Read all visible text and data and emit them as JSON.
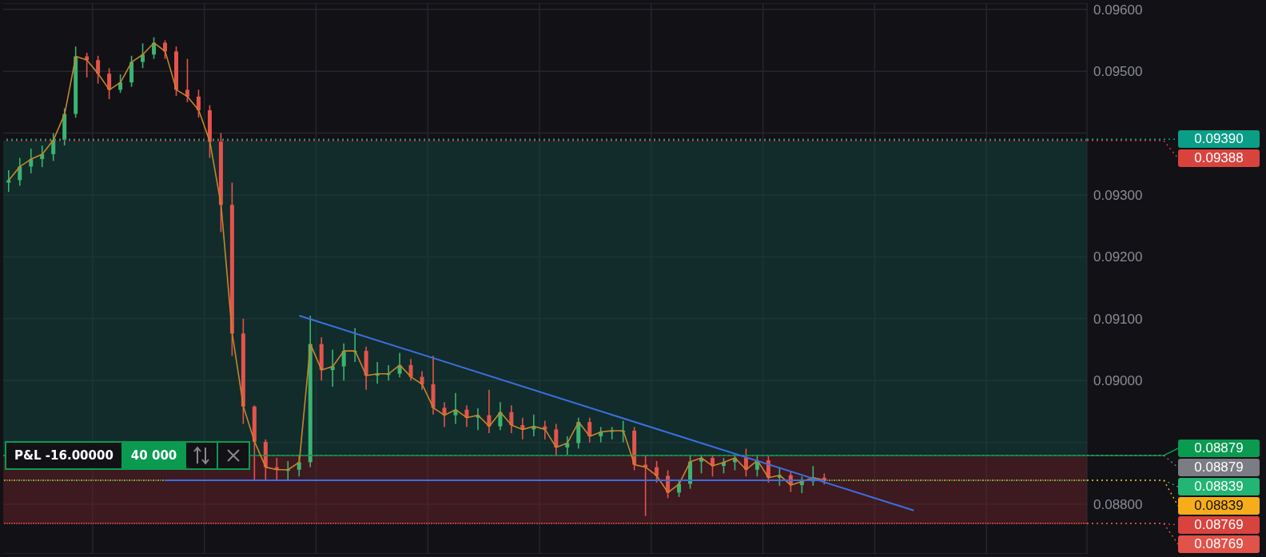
{
  "chart_data": {
    "type": "candlestick",
    "categories": [
      null,
      null,
      null,
      null,
      null,
      null,
      null,
      null,
      null,
      null,
      null,
      null,
      null,
      null,
      null,
      null,
      null,
      null,
      null,
      null,
      null,
      null,
      null,
      null,
      null,
      null,
      null,
      null,
      null,
      null,
      null,
      null,
      null,
      null,
      null,
      null,
      null,
      null,
      null,
      null,
      null,
      null,
      null,
      null,
      null,
      null,
      null,
      null,
      null,
      null,
      null,
      null,
      null,
      null,
      null,
      null,
      null,
      null,
      null,
      null,
      null,
      null,
      null,
      null,
      null,
      null,
      null,
      null,
      null,
      null,
      null,
      null,
      null,
      null,
      null,
      null,
      null,
      null,
      null,
      null,
      null,
      null,
      null,
      null,
      null,
      null,
      null,
      null,
      null,
      null,
      null,
      null,
      null,
      null,
      null,
      null,
      null
    ],
    "ohlc": [
      [
        0.0932,
        0.0934,
        0.09305,
        0.09324
      ],
      [
        0.09324,
        0.0936,
        0.09315,
        0.09346
      ],
      [
        0.09346,
        0.09375,
        0.09335,
        0.09358
      ],
      [
        0.09358,
        0.0938,
        0.09345,
        0.09366
      ],
      [
        0.09366,
        0.094,
        0.09355,
        0.09389
      ],
      [
        0.09389,
        0.0944,
        0.0938,
        0.09431
      ],
      [
        0.09431,
        0.0954,
        0.09425,
        0.09524
      ],
      [
        0.09524,
        0.0953,
        0.0949,
        0.09518
      ],
      [
        0.09518,
        0.09525,
        0.0948,
        0.09496
      ],
      [
        0.09496,
        0.09505,
        0.09455,
        0.0947
      ],
      [
        0.0947,
        0.09495,
        0.09465,
        0.09482
      ],
      [
        0.09482,
        0.09525,
        0.09475,
        0.09515
      ],
      [
        0.09515,
        0.09545,
        0.09505,
        0.09527
      ],
      [
        0.09527,
        0.09555,
        0.0952,
        0.09546
      ],
      [
        0.09546,
        0.0955,
        0.0952,
        0.09532
      ],
      [
        0.09532,
        0.0954,
        0.0946,
        0.0947
      ],
      [
        0.0947,
        0.0952,
        0.0945,
        0.09459
      ],
      [
        0.09459,
        0.0947,
        0.09425,
        0.09437
      ],
      [
        0.09437,
        0.09445,
        0.0936,
        0.09386
      ],
      [
        0.09386,
        0.094,
        0.0924,
        0.09284
      ],
      [
        0.09284,
        0.0932,
        0.0904,
        0.09076
      ],
      [
        0.09076,
        0.091,
        0.0893,
        0.08958
      ],
      [
        0.08958,
        0.0896,
        0.08839,
        0.08901
      ],
      [
        0.08901,
        0.08905,
        0.08839,
        0.0886
      ],
      [
        0.0886,
        0.08875,
        0.08839,
        0.08856
      ],
      [
        0.08856,
        0.0887,
        0.08839,
        0.08856
      ],
      [
        0.08856,
        0.0888,
        0.08845,
        0.08868
      ],
      [
        0.08868,
        0.09105,
        0.0886,
        0.09059
      ],
      [
        0.09059,
        0.0907,
        0.09,
        0.09017
      ],
      [
        0.09017,
        0.0905,
        0.0899,
        0.09023
      ],
      [
        0.09023,
        0.0906,
        0.09,
        0.09048
      ],
      [
        0.09048,
        0.09085,
        0.0903,
        0.09048
      ],
      [
        0.09048,
        0.09055,
        0.08985,
        0.09008
      ],
      [
        0.09008,
        0.0903,
        0.08995,
        0.09011
      ],
      [
        0.09011,
        0.09025,
        0.09,
        0.09011
      ],
      [
        0.09011,
        0.09045,
        0.09005,
        0.09025
      ],
      [
        0.09025,
        0.09035,
        0.09,
        0.09006
      ],
      [
        0.09006,
        0.09015,
        0.08985,
        0.08994
      ],
      [
        0.08994,
        0.0904,
        0.08945,
        0.08956
      ],
      [
        0.08956,
        0.08965,
        0.08925,
        0.08944
      ],
      [
        0.08944,
        0.0898,
        0.0893,
        0.08953
      ],
      [
        0.08953,
        0.0896,
        0.08925,
        0.0894
      ],
      [
        0.0894,
        0.08955,
        0.0892,
        0.08944
      ],
      [
        0.08944,
        0.08985,
        0.08915,
        0.08926
      ],
      [
        0.08926,
        0.08965,
        0.0892,
        0.08949
      ],
      [
        0.08949,
        0.0896,
        0.08915,
        0.08928
      ],
      [
        0.08928,
        0.0894,
        0.08905,
        0.08921
      ],
      [
        0.08921,
        0.08945,
        0.0891,
        0.08926
      ],
      [
        0.08926,
        0.08935,
        0.08905,
        0.08921
      ],
      [
        0.08921,
        0.0893,
        0.0888,
        0.08892
      ],
      [
        0.08892,
        0.0891,
        0.0888,
        0.08899
      ],
      [
        0.08899,
        0.0894,
        0.0889,
        0.08933
      ],
      [
        0.08933,
        0.0894,
        0.089,
        0.0891
      ],
      [
        0.0891,
        0.08925,
        0.089,
        0.08917
      ],
      [
        0.08917,
        0.08925,
        0.08905,
        0.08919
      ],
      [
        0.08919,
        0.08935,
        0.089,
        0.08919
      ],
      [
        0.08919,
        0.08925,
        0.08855,
        0.08864
      ],
      [
        0.08864,
        0.0888,
        0.08781,
        0.0886
      ],
      [
        0.0886,
        0.0887,
        0.08835,
        0.08846
      ],
      [
        0.08846,
        0.08855,
        0.0881,
        0.08819
      ],
      [
        0.08819,
        0.0884,
        0.08812,
        0.08833
      ],
      [
        0.08833,
        0.0888,
        0.08825,
        0.08869
      ],
      [
        0.08869,
        0.0888,
        0.0885,
        0.08875
      ],
      [
        0.08875,
        0.0888,
        0.08845,
        0.08862
      ],
      [
        0.08862,
        0.08875,
        0.0885,
        0.08868
      ],
      [
        0.08868,
        0.0888,
        0.08855,
        0.08875
      ],
      [
        0.08875,
        0.0889,
        0.08845,
        0.08856
      ],
      [
        0.08856,
        0.0888,
        0.08845,
        0.08871
      ],
      [
        0.08871,
        0.08878,
        0.08835,
        0.08843
      ],
      [
        0.08843,
        0.0886,
        0.0883,
        0.08847
      ],
      [
        0.08847,
        0.08852,
        0.0882,
        0.08831
      ],
      [
        0.08831,
        0.08845,
        0.08818,
        0.08837
      ],
      [
        0.08837,
        0.08862,
        0.0883,
        0.08843
      ],
      [
        0.08843,
        0.0885,
        0.08832,
        0.08839
      ],
      null,
      null,
      null,
      null,
      null,
      null,
      null,
      null,
      null,
      null,
      null,
      null,
      null,
      null,
      null,
      null,
      null,
      null,
      null,
      null,
      null,
      null,
      null
    ],
    "colors": [
      "#3cb371",
      "#3cb371",
      "#3cb371",
      "#3cb371",
      "#3cb371",
      "#3cb371",
      "#3cb371",
      "#e5534b",
      "#e5534b",
      "#e5534b",
      "#3cb371",
      "#3cb371",
      "#3cb371",
      "#3cb371",
      "#e5534b",
      "#e5534b",
      "#e5534b",
      "#e5534b",
      "#e5534b",
      "#e5534b",
      "#e5534b",
      "#e5534b",
      "#e5534b",
      "#e5534b",
      "#e5534b",
      "#3cb371",
      "#3cb371",
      "#3cb371",
      "#e5534b",
      "#3cb371",
      "#3cb371",
      "#3cb371",
      "#e5534b",
      "#3cb371",
      "#3cb371",
      "#3cb371",
      "#e5534b",
      "#e5534b",
      "#e5534b",
      "#e5534b",
      "#3cb371",
      "#e5534b",
      "#3cb371",
      "#e5534b",
      "#3cb371",
      "#e5534b",
      "#e5534b",
      "#3cb371",
      "#e5534b",
      "#e5534b",
      "#3cb371",
      "#3cb371",
      "#e5534b",
      "#3cb371",
      "#3cb371",
      "#3cb371",
      "#e5534b",
      "#e5534b",
      "#e5534b",
      "#e5534b",
      "#3cb371",
      "#3cb371",
      "#3cb371",
      "#e5534b",
      "#3cb371",
      "#3cb371",
      "#e5534b",
      "#3cb371",
      "#e5534b",
      "#3cb371",
      "#e5534b",
      "#3cb371",
      "#3cb371",
      "#e5534b",
      null,
      null,
      null,
      null,
      null,
      null,
      null,
      null,
      null,
      null,
      null,
      null,
      null,
      null,
      null,
      null,
      null,
      null,
      null,
      null,
      null,
      null,
      null
    ],
    "series": [
      {
        "type": "line",
        "color": "#c8862c",
        "values": [
          0.09324,
          0.09346,
          0.09358,
          0.09366,
          0.09389,
          0.09431,
          0.09524,
          0.09518,
          0.09496,
          0.0947,
          0.09482,
          0.09515,
          0.09527,
          0.09546,
          0.09532,
          0.0947,
          0.09459,
          0.09437,
          0.09386,
          0.09284,
          0.09076,
          0.08958,
          0.08901,
          0.0886,
          0.08856,
          0.08856,
          0.08868,
          0.09059,
          0.09017,
          0.09023,
          0.09048,
          0.09048,
          0.09008,
          0.09011,
          0.09011,
          0.09025,
          0.09006,
          0.08994,
          0.08956,
          0.08944,
          0.08953,
          0.0894,
          0.08944,
          0.08926,
          0.08949,
          0.08928,
          0.08921,
          0.08926,
          0.08921,
          0.08892,
          0.08899,
          0.08933,
          0.0891,
          0.08917,
          0.08919,
          0.08919,
          0.08864,
          0.0886,
          0.08846,
          0.08819,
          0.08833,
          0.08869,
          0.08875,
          0.08862,
          0.08868,
          0.08875,
          0.08856,
          0.08871,
          0.08843,
          0.08847,
          0.08831,
          0.08837,
          0.08843,
          0.08839,
          null,
          null,
          null,
          null,
          null,
          null,
          null,
          null,
          null,
          null,
          null,
          null,
          null,
          null,
          null,
          null,
          null,
          null,
          null,
          null,
          null,
          null,
          null
        ]
      },
      {
        "type": "line",
        "color": "#3d6fe0",
        "values": [
          null,
          null,
          null,
          null,
          null,
          null,
          null,
          null,
          null,
          null,
          null,
          null,
          null,
          null,
          null,
          null,
          null,
          null,
          null,
          null,
          null,
          null,
          null,
          null,
          null,
          null,
          0.09105,
          null,
          null,
          null,
          null,
          null,
          null,
          null,
          null,
          null,
          null,
          null,
          null,
          null,
          null,
          null,
          null,
          null,
          null,
          null,
          null,
          null,
          null,
          null,
          null,
          null,
          null,
          null,
          null,
          null,
          null,
          null,
          null,
          null,
          null,
          null,
          null,
          null,
          null,
          null,
          null,
          null,
          null,
          null,
          null,
          null,
          null,
          null,
          null,
          null,
          null,
          null,
          null,
          null,
          null,
          0.0879,
          null,
          null,
          null,
          null,
          null,
          null,
          null,
          null,
          null,
          null,
          null,
          null,
          null,
          null,
          null
        ]
      },
      {
        "type": "line",
        "color": "#3d6fe0",
        "values": [
          null,
          null,
          null,
          null,
          null,
          null,
          null,
          null,
          null,
          null,
          null,
          null,
          null,
          null,
          0.08839,
          null,
          null,
          null,
          null,
          null,
          null,
          null,
          null,
          null,
          null,
          null,
          null,
          null,
          null,
          null,
          null,
          null,
          null,
          null,
          null,
          null,
          null,
          null,
          null,
          null,
          null,
          null,
          null,
          null,
          null,
          null,
          null,
          null,
          null,
          null,
          null,
          null,
          null,
          null,
          null,
          null,
          null,
          null,
          null,
          null,
          null,
          null,
          null,
          null,
          null,
          null,
          null,
          null,
          null,
          null,
          null,
          null,
          null,
          0.08839,
          null,
          null,
          null,
          null,
          null,
          null,
          null,
          null,
          null,
          null,
          null,
          null,
          null,
          null,
          null,
          null,
          null,
          null,
          null,
          null,
          null,
          null,
          null
        ]
      }
    ],
    "ylim": [
      0.0872,
      0.0961
    ],
    "yticks": [
      {
        "value": 0.088,
        "label": "0.08800"
      },
      {
        "value": 0.089,
        "label": null
      },
      {
        "value": 0.09,
        "label": "0.09000"
      },
      {
        "value": 0.091,
        "label": "0.09100"
      },
      {
        "value": 0.092,
        "label": "0.09200"
      },
      {
        "value": 0.093,
        "label": "0.09300"
      },
      {
        "value": 0.094,
        "label": null
      },
      {
        "value": 0.095,
        "label": "0.09500"
      },
      {
        "value": 0.096,
        "label": "0.09600"
      }
    ],
    "grid": true,
    "ref_lines": [
      {
        "axis": "y",
        "value": 0.0939,
        "label": "0.09390",
        "color": "#0b9e86",
        "line_style": "dotted"
      },
      {
        "axis": "y",
        "value": 0.09388,
        "label": "0.09388",
        "color": "#d9433d",
        "line_style": "dotted"
      },
      {
        "axis": "y",
        "value": 0.08879,
        "label": "0.08879",
        "color": "#0a9a50",
        "line_style": "solid"
      },
      {
        "axis": "y",
        "value": 0.08879,
        "label": "0.08879",
        "color": "#7b7c84",
        "line_style": "dotted"
      },
      {
        "axis": "y",
        "value": 0.08839,
        "label": "0.08839",
        "color": "#22b573",
        "line_style": "dotted"
      },
      {
        "axis": "y",
        "value": 0.08839,
        "label": "0.08839",
        "color": "#f7ad1a",
        "line_style": "dotted"
      },
      {
        "axis": "y",
        "value": 0.08769,
        "label": "0.08769",
        "color": "#d9433d",
        "line_style": "dotted"
      },
      {
        "axis": "y",
        "value": 0.08769,
        "label": "0.08769",
        "color": "#e0524a",
        "line_style": "dotted"
      }
    ],
    "bands": [
      {
        "axis": "y",
        "from": 0.08879,
        "to": 0.09388,
        "color": "#13443e"
      },
      {
        "axis": "y",
        "from": 0.08769,
        "to": 0.08879,
        "color": "#63212a"
      }
    ],
    "annotations": [
      "P&L -16.00000",
      "40 000"
    ]
  }
}
